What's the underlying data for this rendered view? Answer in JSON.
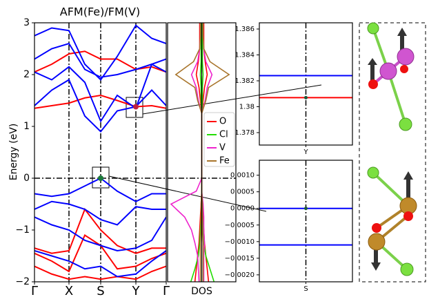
{
  "chart_data": [
    {
      "type": "band",
      "title": "AFM(Fe)/FM(V)",
      "ylabel": "Energy (eV)",
      "xlim": [
        0,
        191
      ],
      "xticks": [
        {
          "value": 0,
          "label": "Γ"
        },
        {
          "value": 50,
          "label": "X"
        },
        {
          "value": 96,
          "label": "S"
        },
        {
          "value": 147,
          "label": "Y"
        },
        {
          "value": 191,
          "label": "Γ"
        }
      ],
      "ylim": [
        -2,
        3
      ],
      "yticks": [
        3,
        2,
        1,
        0,
        {
          "value": -1,
          "label": "−1"
        },
        {
          "value": -2,
          "label": "−2"
        }
      ],
      "fermi_level": 0,
      "x": [
        0,
        25,
        50,
        73,
        96,
        120,
        147,
        170,
        191
      ],
      "series": [
        {
          "color": "#ff0000",
          "values": [
            2.05,
            2.2,
            2.4,
            2.45,
            2.3,
            2.3,
            2.1,
            2.15,
            2.05
          ]
        },
        {
          "color": "#ff0000",
          "values": [
            1.35,
            1.4,
            1.45,
            1.55,
            1.6,
            1.5,
            1.38,
            1.4,
            1.35
          ]
        },
        {
          "color": "#ff0000",
          "values": [
            -1.35,
            -1.45,
            -1.4,
            -0.6,
            -1.0,
            -1.3,
            -1.45,
            -1.35,
            -1.35
          ]
        },
        {
          "color": "#ff0000",
          "values": [
            -1.45,
            -1.6,
            -1.8,
            -1.1,
            -1.3,
            -1.75,
            -1.7,
            -1.55,
            -1.45
          ]
        },
        {
          "color": "#ff0000",
          "values": [
            -1.7,
            -1.85,
            -1.95,
            -1.9,
            -1.95,
            -1.9,
            -1.95,
            -1.8,
            -1.7
          ]
        },
        {
          "color": "#0000ff",
          "values": [
            2.75,
            2.9,
            2.85,
            2.2,
            1.9,
            2.35,
            2.95,
            2.7,
            2.6
          ]
        },
        {
          "color": "#0000ff",
          "values": [
            2.3,
            2.5,
            2.6,
            2.1,
            1.95,
            2.0,
            2.1,
            2.2,
            2.3
          ]
        },
        {
          "color": "#0000ff",
          "values": [
            2.05,
            1.9,
            2.15,
            1.85,
            1.1,
            1.6,
            1.35,
            2.2,
            2.05
          ]
        },
        {
          "color": "#0000ff",
          "values": [
            1.4,
            1.7,
            1.9,
            1.2,
            0.9,
            1.3,
            1.38,
            1.7,
            1.4
          ]
        },
        {
          "color": "#0000ff",
          "values": [
            -0.3,
            -0.35,
            -0.3,
            -0.15,
            0.0,
            -0.25,
            -0.45,
            -0.3,
            -0.3
          ]
        },
        {
          "color": "#0000ff",
          "values": [
            -0.6,
            -0.45,
            -0.5,
            -0.6,
            -0.8,
            -0.9,
            -0.55,
            -0.6,
            -0.6
          ]
        },
        {
          "color": "#0000ff",
          "values": [
            -0.75,
            -0.9,
            -1.0,
            -1.2,
            -1.3,
            -1.4,
            -1.35,
            -1.2,
            -0.75
          ]
        },
        {
          "color": "#0000ff",
          "values": [
            -1.4,
            -1.5,
            -1.6,
            -1.75,
            -1.7,
            -1.9,
            -1.85,
            -1.6,
            -1.4
          ]
        }
      ],
      "highlights": [
        {
          "x": 147,
          "y": 1.38,
          "color": "#c02040"
        },
        {
          "x": 96,
          "y": 0,
          "color": "#1a7a3a"
        }
      ]
    },
    {
      "type": "dos",
      "xlabel": "DOS",
      "xlim": [
        -5,
        5
      ],
      "xline": 0,
      "ylim": [
        -2,
        3
      ],
      "fermi_level": 0,
      "energies": [
        -2,
        -1.75,
        -1.5,
        -1.25,
        -1,
        -0.75,
        -0.5,
        -0.25,
        0,
        0.25,
        0.5,
        0.75,
        1,
        1.25,
        1.5,
        1.75,
        2,
        2.25,
        2.5,
        2.75,
        3
      ],
      "series": [
        {
          "name": "O",
          "color": "#ff0000",
          "values_up": [
            1.0,
            0.8,
            0.6,
            0.4,
            0.3,
            0.2,
            0.1,
            0,
            0,
            0,
            0,
            0,
            0,
            0,
            0.2,
            0.4,
            0.8,
            0.5,
            0.3,
            0.3,
            0.3
          ],
          "values_down": [
            -1.0,
            -0.8,
            -0.6,
            -0.4,
            -0.3,
            -0.2,
            -0.1,
            0,
            0,
            0,
            0,
            0,
            0,
            0,
            -0.2,
            -0.4,
            -0.8,
            -0.5,
            -0.3,
            -0.3,
            -0.3
          ]
        },
        {
          "name": "Cl",
          "color": "#22dd00",
          "values_up": [
            1.8,
            1.2,
            0.6,
            0.3,
            0.2,
            0.1,
            0.05,
            0,
            0,
            0,
            0,
            0,
            0,
            0,
            0.1,
            0.1,
            0.2,
            0.1,
            0.1,
            0.1,
            0.1
          ],
          "values_down": [
            -1.6,
            -1.0,
            -0.5,
            -0.3,
            -0.2,
            -0.1,
            -0.05,
            0,
            0,
            0,
            0,
            0,
            0,
            0,
            -0.1,
            -0.1,
            -0.2,
            -0.1,
            -0.1,
            -0.1,
            -0.1
          ]
        },
        {
          "name": "V",
          "color": "#ee22cc",
          "values_up": [
            0.3,
            0.3,
            0.3,
            0.4,
            0.3,
            0.3,
            0.2,
            0,
            0,
            0,
            0,
            0,
            0,
            0,
            0.5,
            0.8,
            1.5,
            0.6,
            0.3,
            0.2,
            0.2
          ],
          "values_down": [
            -0.4,
            -0.5,
            -0.6,
            -1.0,
            -1.5,
            -2.5,
            -4.5,
            -0.8,
            0,
            0,
            0,
            0,
            0,
            0,
            -0.5,
            -0.8,
            -1.5,
            -0.6,
            -0.3,
            -0.2,
            -0.2
          ]
        },
        {
          "name": "Fe",
          "color": "#a8742a",
          "values_up": [
            0.2,
            0.2,
            0.2,
            0.2,
            0.1,
            0.1,
            0.1,
            0,
            0,
            0,
            0,
            0,
            0,
            0,
            0.6,
            1.0,
            4.0,
            1.2,
            0.3,
            0.2,
            0.2
          ],
          "values_down": [
            -0.2,
            -0.2,
            -0.2,
            -0.2,
            -0.1,
            -0.1,
            -0.1,
            0,
            0,
            0,
            0,
            0,
            0,
            0,
            -0.6,
            -1.0,
            -3.8,
            -1.2,
            -0.3,
            -0.2,
            -0.2
          ]
        }
      ]
    },
    {
      "type": "zoom",
      "xlabel": "Y",
      "ylim": [
        1.37704,
        1.38648
      ],
      "yticks": [
        1.378,
        1.38,
        1.382,
        1.384,
        1.386
      ],
      "lines": [
        {
          "color": "#0000ff",
          "value": 1.3824
        },
        {
          "color": "#ff0000",
          "value": 1.3807
        }
      ],
      "point": 1.3807
    },
    {
      "type": "zoom",
      "xlabel": "S",
      "ylim": [
        -0.00221,
        0.00145
      ],
      "yticks": [
        {
          "value": 0.001,
          "label": "0.0010"
        },
        {
          "value": 0.0005,
          "label": "0.0005"
        },
        {
          "value": 0,
          "label": "0.0000"
        },
        {
          "value": -0.0005,
          "label": "−0.0005"
        },
        {
          "value": -0.001,
          "label": "−0.0010"
        },
        {
          "value": -0.0015,
          "label": "−0.0015"
        },
        {
          "value": -0.002,
          "label": "−0.0020"
        }
      ],
      "lines": [
        {
          "color": "#0000ff",
          "value": 0
        },
        {
          "color": "#0000ff",
          "value": -0.0011
        }
      ],
      "point": 0
    }
  ]
}
